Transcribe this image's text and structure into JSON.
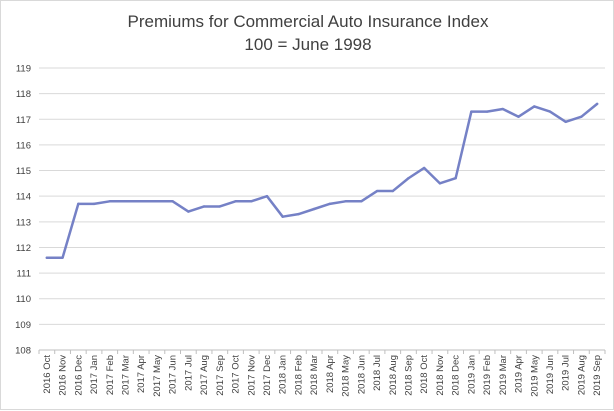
{
  "chart_data": {
    "type": "line",
    "title": "Premiums for Commercial Auto Insurance Index",
    "subtitle": "100 = June 1998",
    "xlabel": "",
    "ylabel": "",
    "ylim": [
      108,
      119
    ],
    "yticks": [
      "108",
      "109",
      "110",
      "111",
      "112",
      "113",
      "114",
      "115",
      "116",
      "117",
      "118",
      "119"
    ],
    "grid": "horizontal",
    "categories": [
      "2016 Oct",
      "2016 Nov",
      "2016 Dec",
      "2017 Jan",
      "2017 Feb",
      "2017 Mar",
      "2017 Apr",
      "2017 May",
      "2017 Jun",
      "2017 Jul",
      "2017 Aug",
      "2017 Sep",
      "2017 Oct",
      "2017 Nov",
      "2017 Dec",
      "2018 Jan",
      "2018 Feb",
      "2018 Mar",
      "2018 Apr",
      "2018 May",
      "2018 Jun",
      "2018 Jul",
      "2018 Aug",
      "2018 Sep",
      "2018 Oct",
      "2018 Nov",
      "2018 Dec",
      "2019 Jan",
      "2019 Feb",
      "2019 Mar",
      "2019 Apr",
      "2019 May",
      "2019 Jun",
      "2019 Jul",
      "2019 Aug",
      "2019 Sep"
    ],
    "series": [
      {
        "values": [
          111.6,
          111.6,
          113.7,
          113.7,
          113.8,
          113.8,
          113.8,
          113.8,
          113.8,
          113.4,
          113.6,
          113.6,
          113.8,
          113.8,
          114.0,
          113.2,
          113.3,
          113.5,
          113.7,
          113.8,
          113.8,
          114.2,
          114.2,
          114.7,
          115.1,
          114.5,
          114.7,
          117.3,
          117.3,
          117.4,
          117.1,
          117.5,
          117.3,
          116.9,
          117.1,
          117.6
        ],
        "color": "#7581c6"
      }
    ]
  }
}
